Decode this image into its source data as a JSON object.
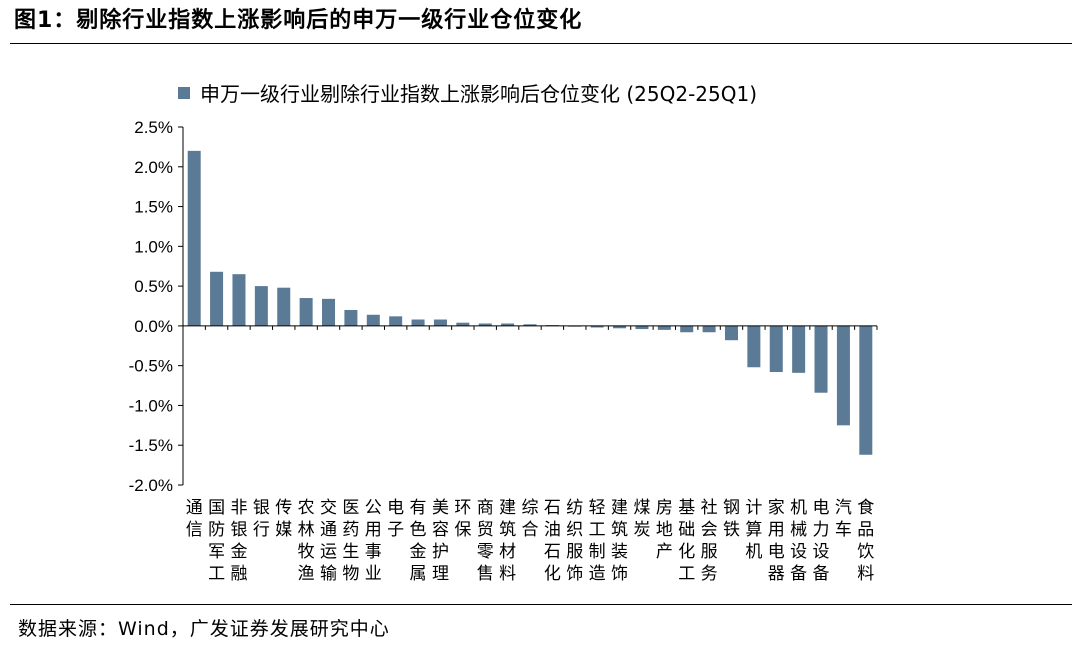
{
  "figure": {
    "title": "图1：剔除行业指数上涨影响后的申万一级行业仓位变化",
    "source": "数据来源：Wind，广发证券发展研究中心"
  },
  "chart_data": {
    "type": "bar",
    "series": [
      {
        "name": "申万一级行业剔除行业指数上涨影响后仓位变化 (25Q2-25Q1)",
        "color": "#5a7a96"
      }
    ],
    "categories": [
      "通信",
      "国防军工",
      "非银金融",
      "银行",
      "传媒",
      "农林牧渔",
      "交通运输",
      "医药生物",
      "公用事业",
      "电子",
      "有色金属",
      "美容护理",
      "环保",
      "商贸零售",
      "建筑材料",
      "综合",
      "石油石化",
      "纺织服饰",
      "轻工制造",
      "建筑装饰",
      "煤炭",
      "房地产",
      "基础化工",
      "社会服务",
      "钢铁",
      "计算机",
      "家用电器",
      "机械设备",
      "电力设备",
      "汽车",
      "食品饮料"
    ],
    "values": [
      2.2,
      0.68,
      0.65,
      0.5,
      0.48,
      0.35,
      0.34,
      0.2,
      0.14,
      0.12,
      0.08,
      0.08,
      0.04,
      0.03,
      0.03,
      0.02,
      0.01,
      -0.01,
      -0.02,
      -0.03,
      -0.04,
      -0.05,
      -0.08,
      -0.08,
      -0.18,
      -0.52,
      -0.58,
      -0.59,
      -0.84,
      -1.25,
      -1.62
    ],
    "ylim": [
      -2.0,
      2.5
    ],
    "yticks": [
      "2.5%",
      "2.0%",
      "1.5%",
      "1.0%",
      "0.5%",
      "0.0%",
      "-0.5%",
      "-1.0%",
      "-1.5%",
      "-2.0%"
    ],
    "ytick_values": [
      2.5,
      2.0,
      1.5,
      1.0,
      0.5,
      0.0,
      -0.5,
      -1.0,
      -1.5,
      -2.0
    ],
    "grid": false,
    "legend_position": "top"
  }
}
